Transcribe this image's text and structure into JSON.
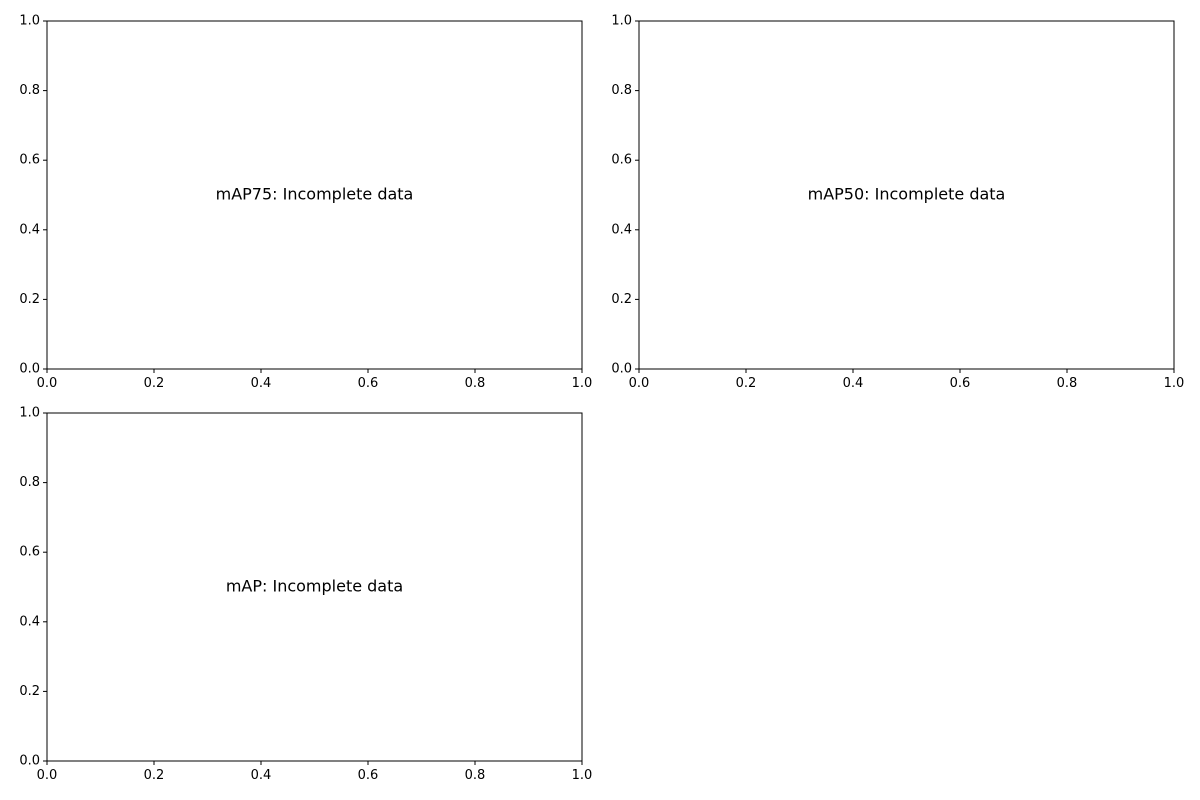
{
  "chart_data": [
    {
      "type": "line",
      "title": "",
      "xlabel": "",
      "ylabel": "",
      "xlim": [
        0,
        1
      ],
      "ylim": [
        0,
        1
      ],
      "xticks": [
        "0.0",
        "0.2",
        "0.4",
        "0.6",
        "0.8",
        "1.0"
      ],
      "yticks": [
        "0.0",
        "0.2",
        "0.4",
        "0.6",
        "0.8",
        "1.0"
      ],
      "series": [],
      "grid": false,
      "annotation": {
        "text": "mAP75: Incomplete data",
        "x": 0.5,
        "y": 0.5
      }
    },
    {
      "type": "line",
      "title": "",
      "xlabel": "",
      "ylabel": "",
      "xlim": [
        0,
        1
      ],
      "ylim": [
        0,
        1
      ],
      "xticks": [
        "0.0",
        "0.2",
        "0.4",
        "0.6",
        "0.8",
        "1.0"
      ],
      "yticks": [
        "0.0",
        "0.2",
        "0.4",
        "0.6",
        "0.8",
        "1.0"
      ],
      "series": [],
      "grid": false,
      "annotation": {
        "text": "mAP50: Incomplete data",
        "x": 0.5,
        "y": 0.5
      }
    },
    {
      "type": "line",
      "title": "",
      "xlabel": "",
      "ylabel": "",
      "xlim": [
        0,
        1
      ],
      "ylim": [
        0,
        1
      ],
      "xticks": [
        "0.0",
        "0.2",
        "0.4",
        "0.6",
        "0.8",
        "1.0"
      ],
      "yticks": [
        "0.0",
        "0.2",
        "0.4",
        "0.6",
        "0.8",
        "1.0"
      ],
      "series": [],
      "grid": false,
      "annotation": {
        "text": "mAP: Incomplete data",
        "x": 0.5,
        "y": 0.5
      }
    }
  ]
}
